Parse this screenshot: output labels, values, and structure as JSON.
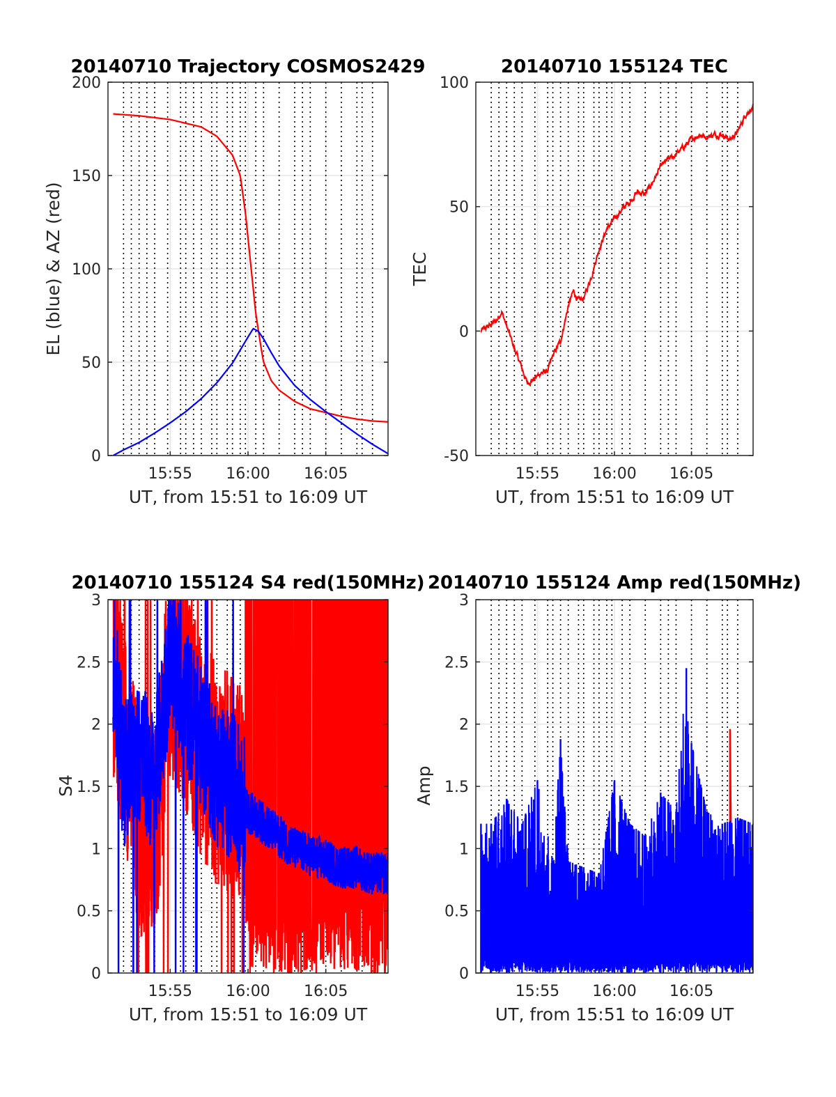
{
  "colors": {
    "red": "#ff0000",
    "blue": "#0000ff",
    "grid": "#e6e6e6",
    "pass": "#000000",
    "axis": "#262626"
  },
  "chart_data": [
    {
      "type": "line",
      "title": "20140710 Trajectory COSMOS2429",
      "xlabel": "UT, from 15:51 to 16:09 UT",
      "ylabel": "EL (blue) & AZ (red)",
      "xlim": [
        "15:51",
        "16:09"
      ],
      "ylim": [
        0,
        200
      ],
      "xticks": [
        "15:55",
        "16:00",
        "16:05"
      ],
      "yticks": [
        0,
        50,
        100,
        150,
        200
      ],
      "grid": true,
      "series": [
        {
          "color": "red",
          "x": [
            "15:51:20",
            "15:53",
            "15:55",
            "15:57",
            "15:58",
            "15:59",
            "15:59:30",
            "15:59:50",
            "16:00:10",
            "16:00:30",
            "16:00:50",
            "16:01",
            "16:01:30",
            "16:02",
            "16:03",
            "16:04",
            "16:05",
            "16:06",
            "16:07",
            "16:08",
            "16:09"
          ],
          "values": [
            183,
            182,
            180,
            176,
            171,
            161,
            150,
            130,
            103,
            76,
            58,
            50,
            40,
            35,
            29,
            25,
            23,
            21,
            19.5,
            18.5,
            18
          ]
        },
        {
          "color": "blue",
          "x": [
            "15:51:20",
            "15:52",
            "15:53",
            "15:54",
            "15:55",
            "15:56",
            "15:57",
            "15:58",
            "15:59",
            "15:59:30",
            "16:00",
            "16:00:20",
            "16:00:40",
            "16:01",
            "16:01:30",
            "16:02",
            "16:03",
            "16:04",
            "16:05",
            "16:06",
            "16:07",
            "16:08",
            "16:09"
          ],
          "values": [
            0,
            3,
            7,
            12,
            17.5,
            23.5,
            30.5,
            39,
            49.5,
            56.5,
            63.5,
            68,
            66.5,
            62.5,
            55,
            48,
            37.5,
            30,
            23.5,
            17.5,
            11.5,
            6,
            1
          ]
        }
      ]
    },
    {
      "type": "line",
      "title": "20140710 155124 TEC",
      "xlabel": "UT, from 15:51 to 16:09 UT",
      "ylabel": "TEC",
      "xlim": [
        "15:51",
        "16:09"
      ],
      "ylim": [
        -50,
        100
      ],
      "xticks": [
        "15:55",
        "16:00",
        "16:05"
      ],
      "yticks": [
        -50,
        0,
        50,
        100
      ],
      "grid": true,
      "series": [
        {
          "color": "red",
          "x": [
            "15:51:20",
            "15:51:50",
            "15:52:20",
            "15:52:40",
            "15:53",
            "15:53:30",
            "15:54",
            "15:54:20",
            "15:54:50",
            "15:55:10",
            "15:55:40",
            "15:56",
            "15:56:30",
            "15:57",
            "15:57:20",
            "15:57:40",
            "15:58",
            "15:58:30",
            "15:59",
            "15:59:30",
            "16:00",
            "16:00:30",
            "16:01",
            "16:01:30",
            "16:02",
            "16:02:30",
            "16:03",
            "16:03:30",
            "16:04",
            "16:04:30",
            "16:05",
            "16:05:30",
            "16:06",
            "16:06:30",
            "16:07",
            "16:07:30",
            "16:08",
            "16:08:30",
            "16:09"
          ],
          "values": [
            0,
            2,
            4,
            8,
            2,
            -7,
            -15,
            -21,
            -19,
            -17,
            -16,
            -10,
            -4,
            10,
            16,
            12,
            13,
            22,
            33,
            41,
            45,
            49,
            52,
            56,
            55,
            60,
            66,
            69,
            71,
            74,
            77,
            79,
            78,
            79,
            79,
            77,
            80,
            87,
            90
          ]
        }
      ]
    },
    {
      "type": "line",
      "title": "20140710 155124 S4 red(150MHz)",
      "xlabel": "UT, from 15:51 to 16:09 UT",
      "ylabel": "S4",
      "xlim": [
        "15:51",
        "16:09"
      ],
      "ylim": [
        0,
        3
      ],
      "xticks": [
        "15:55",
        "16:00",
        "16:05"
      ],
      "yticks": [
        0,
        0.5,
        1,
        1.5,
        2,
        2.5,
        3
      ],
      "grid": true,
      "series": [
        {
          "color": "red",
          "x": [
            "15:51:20",
            "15:52",
            "15:53",
            "15:54",
            "15:55",
            "15:56",
            "15:57",
            "15:58",
            "15:59",
            "16:00",
            "16:01",
            "16:02",
            "16:03",
            "16:04",
            "16:05",
            "16:06",
            "16:07",
            "16:08",
            "16:09"
          ],
          "values": [
            2.4,
            2.0,
            1.2,
            1.1,
            2.5,
            2.2,
            1.8,
            1.6,
            1.5,
            1.5,
            1.5,
            1.5,
            1.5,
            1.5,
            1.5,
            1.5,
            1.5,
            1.5,
            1.5
          ]
        },
        {
          "color": "blue",
          "x": [
            "15:51:20",
            "15:52",
            "15:53",
            "15:54",
            "15:55",
            "15:56",
            "15:57",
            "15:58",
            "15:59",
            "16:00",
            "16:01",
            "16:02",
            "16:03",
            "16:04",
            "16:05",
            "16:06",
            "16:07",
            "16:08",
            "16:09"
          ],
          "values": [
            2.5,
            1.6,
            1.8,
            1.5,
            2.6,
            2.2,
            1.9,
            1.6,
            1.5,
            1.3,
            1.2,
            1.1,
            1.0,
            0.95,
            0.9,
            0.85,
            0.85,
            0.8,
            0.8
          ]
        }
      ]
    },
    {
      "type": "line",
      "title": "20140710 155124 Amp red(150MHz)",
      "xlabel": "UT, from 15:51 to 16:09 UT",
      "ylabel": "Amp",
      "xlim": [
        "15:51",
        "16:09"
      ],
      "ylim": [
        0,
        3
      ],
      "xticks": [
        "15:55",
        "16:00",
        "16:05"
      ],
      "yticks": [
        0,
        0.5,
        1,
        1.5,
        2,
        2.5,
        3
      ],
      "grid": true,
      "series": [
        {
          "color": "red",
          "x": [
            "16:07:30"
          ],
          "values": [
            1.96
          ]
        },
        {
          "color": "blue",
          "x": [
            "15:51:20",
            "15:52",
            "15:53",
            "15:54",
            "15:55",
            "15:56",
            "15:56:30",
            "15:57",
            "15:58",
            "15:59",
            "16:00",
            "16:01",
            "16:02",
            "16:03",
            "16:04",
            "16:04:40",
            "16:05",
            "16:06",
            "16:07",
            "16:08",
            "16:09"
          ],
          "values": [
            1.2,
            1.2,
            1.4,
            1.2,
            1.55,
            0.9,
            1.88,
            0.9,
            0.85,
            0.8,
            1.55,
            1.2,
            1.1,
            1.45,
            1.3,
            2.45,
            1.85,
            1.3,
            1.2,
            1.25,
            1.2
          ]
        }
      ]
    }
  ]
}
